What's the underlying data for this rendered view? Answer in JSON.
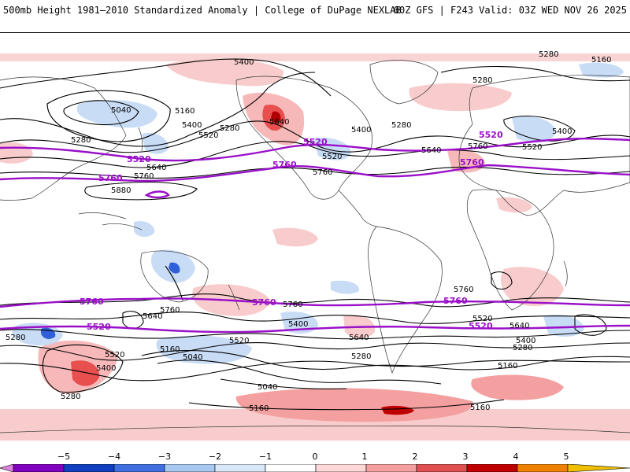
{
  "header": {
    "left": "500mb Height 1981–2010 Standardized Anomaly | College of DuPage NEXLAB",
    "right": "00Z GFS | F243 Valid: 03Z WED NOV 26 2025"
  },
  "contour_labels": {
    "c5040a": "5040",
    "c5160a": "5160",
    "c5400a": "5400",
    "c5280a": "5280",
    "c5520a": "5520",
    "c5280b": "5280",
    "c5640a": "5640",
    "c5760a": "5760",
    "c5880a": "5880",
    "c5400b": "5400",
    "c5640b": "5640",
    "c5400c": "5400",
    "c5520b": "5520",
    "c5760b": "5760",
    "c5280c": "5280",
    "c5640c": "5640",
    "c5760c": "5760",
    "c5280d": "5280",
    "c5160b": "5160",
    "c5280e": "5280",
    "c5400d": "5400",
    "c5520c": "5520",
    "s5760a": "5760",
    "s5640a": "5640",
    "s5280a": "5280",
    "s5520a": "5520",
    "s5400a": "5400",
    "s5160a": "5160",
    "s5040a": "5040",
    "s5280b": "5280",
    "s5760b": "5760",
    "s5520b": "5520",
    "s5400b": "5400",
    "s5040b": "5040",
    "s5160b": "5160",
    "s5640b": "5640",
    "s5280c": "5280",
    "s5160c": "5160",
    "s5760c": "5760",
    "s5520c": "5520",
    "s5640c": "5640",
    "s5400c": "5400",
    "s5280d": "5280",
    "s5160d": "5160",
    "p5520a": "5520",
    "p5760a": "5760",
    "p5760b": "5760",
    "p5520b": "5520",
    "p5760c": "5760",
    "p5520c": "5520",
    "p5760d": "5760",
    "p5760e": "5760",
    "p5520d": "5520",
    "p5760f": "5760",
    "p5520e": "5520"
  },
  "colorbar": {
    "ticks": [
      "−5",
      "−4",
      "−3",
      "−2",
      "−1",
      "0",
      "1",
      "2",
      "3",
      "4",
      "5"
    ],
    "colors": [
      "#e080e0",
      "#8000c0",
      "#1040c0",
      "#4070e0",
      "#a8c8f0",
      "#d8e8f8",
      "#ffffff",
      "#fcd8d8",
      "#f4a0a0",
      "#e05050",
      "#c00000",
      "#f08000",
      "#f0c000"
    ]
  },
  "colors": {
    "negative_fill": "#c8dcf6",
    "positive_fill": "#f8cccc",
    "strong_pos": "#e85050",
    "strong_neg": "#3060d8",
    "purple_contour": "#9a10c8"
  }
}
